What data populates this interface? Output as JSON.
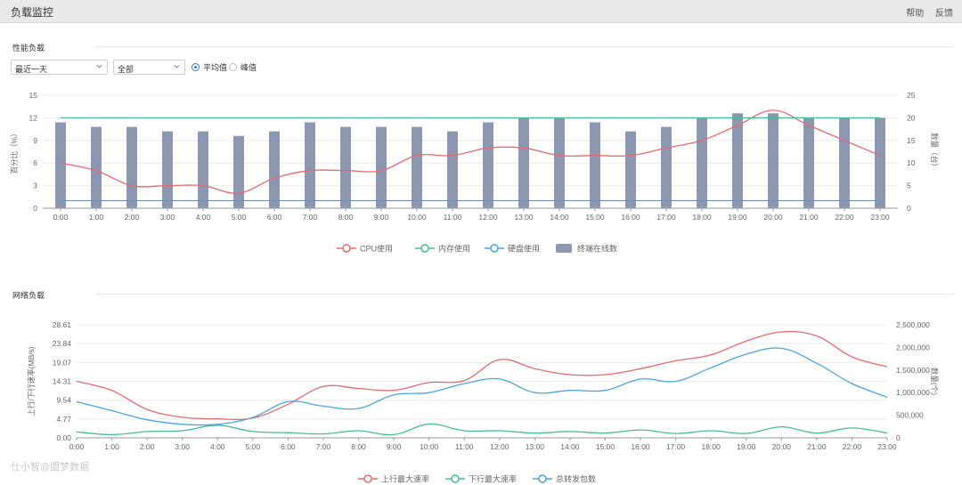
{
  "header": {
    "title": "负载监控",
    "help": "帮助",
    "feedback": "反馈"
  },
  "perf": {
    "section_title": "性能负载",
    "range_select": "最近一天",
    "scope_select": "全部",
    "radio_avg": "平均值",
    "radio_peak": "峰值",
    "radio_selected": "avg"
  },
  "network": {
    "section_title": "网络负载"
  },
  "watermark": "仕小智@盟梦数据",
  "colors": {
    "cpu": "#e86a6f",
    "mem": "#46bd95",
    "disk": "#4aa6e0",
    "bars": "#8c97b2",
    "up": "#e86a6f",
    "down": "#46bd95",
    "packets": "#4aa6e0",
    "accent": "#2a7ae2"
  },
  "chart_data": [
    {
      "type": "bar",
      "categories": [
        "0:00",
        "1:00",
        "2:00",
        "3:00",
        "4:00",
        "5:00",
        "6:00",
        "7:00",
        "8:00",
        "9:00",
        "10:00",
        "11:00",
        "12:00",
        "13:00",
        "14:00",
        "15:00",
        "16:00",
        "17:00",
        "18:00",
        "19:00",
        "20:00",
        "21:00",
        "22:00",
        "23:00"
      ],
      "ylabel": "百分比（%）",
      "ylabel_right": "数量（台）",
      "ylim": [
        0,
        15
      ],
      "yticks": [
        0,
        3,
        6,
        9,
        12,
        15
      ],
      "ylim_right": [
        0,
        25
      ],
      "yticks_right": [
        0,
        5,
        10,
        15,
        20,
        25
      ],
      "legend_position": "bottom",
      "grid": true,
      "series": [
        {
          "name": "CPU使用",
          "kind": "line",
          "axis": "left",
          "color_key": "cpu",
          "values": [
            6.0,
            5.0,
            3.0,
            3.0,
            3.0,
            2.0,
            4.0,
            5.0,
            5.0,
            5.0,
            7.0,
            7.0,
            8.0,
            8.0,
            7.0,
            7.0,
            7.0,
            8.0,
            9.0,
            11.0,
            13.0,
            11.0,
            9.0,
            7.0
          ]
        },
        {
          "name": "内存使用",
          "kind": "line",
          "axis": "left",
          "color_key": "mem",
          "values": [
            12,
            12,
            12,
            12,
            12,
            12,
            12,
            12,
            12,
            12,
            12,
            12,
            12,
            12,
            12,
            12,
            12,
            12,
            12,
            12,
            12,
            12,
            12,
            12
          ]
        },
        {
          "name": "硬盘使用",
          "kind": "line",
          "axis": "left",
          "color_key": "disk",
          "values": [
            1,
            1,
            1,
            1,
            1,
            1,
            1,
            1,
            1,
            1,
            1,
            1,
            1,
            1,
            1,
            1,
            1,
            1,
            1,
            1,
            1,
            1,
            1,
            1
          ]
        },
        {
          "name": "终端在线数",
          "kind": "bar",
          "axis": "right",
          "color_key": "bars",
          "values": [
            19,
            18,
            18,
            17,
            17,
            16,
            17,
            19,
            18,
            18,
            18,
            17,
            19,
            20,
            20,
            19,
            17,
            18,
            20,
            21,
            21,
            20,
            20,
            20
          ]
        }
      ]
    },
    {
      "type": "line",
      "categories": [
        "0:00",
        "1:00",
        "2:00",
        "3:00",
        "4:00",
        "5:00",
        "6:00",
        "7:00",
        "8:00",
        "9:00",
        "10:00",
        "11:00",
        "12:00",
        "13:00",
        "14:00",
        "15:00",
        "16:00",
        "17:00",
        "18:00",
        "19:00",
        "20:00",
        "21:00",
        "22:00",
        "23:00"
      ],
      "ylabel": "上行/下行速率(MB/s)",
      "ylabel_right": "数量(个)",
      "ylim": [
        0,
        28.61
      ],
      "yticks": [
        "0.00",
        "4.77",
        "9.54",
        "14.31",
        "19.07",
        "23.84",
        "28.61"
      ],
      "ylim_right": [
        0,
        2500000
      ],
      "yticks_right": [
        "0",
        "500,000",
        "1,000,000",
        "1,500,000",
        "2,000,000",
        "2,500,000"
      ],
      "legend_position": "bottom",
      "grid": true,
      "series": [
        {
          "name": "上行最大速率",
          "axis": "left",
          "color_key": "up",
          "values": [
            14.3,
            12.0,
            7.2,
            5.2,
            4.8,
            5.0,
            8.5,
            13.0,
            12.5,
            12.0,
            14.0,
            14.5,
            19.8,
            17.5,
            16.0,
            16.0,
            17.5,
            19.5,
            21.0,
            24.5,
            26.8,
            25.8,
            20.5,
            18.0
          ]
        },
        {
          "name": "下行最大速率",
          "axis": "left",
          "color_key": "down",
          "values": [
            1.5,
            0.8,
            1.6,
            1.8,
            3.2,
            1.6,
            1.3,
            1.0,
            1.8,
            0.8,
            3.5,
            1.8,
            1.8,
            1.2,
            1.6,
            1.2,
            2.0,
            1.1,
            1.8,
            1.1,
            2.8,
            1.2,
            2.5,
            1.2
          ]
        },
        {
          "name": "总转发包数",
          "axis": "right",
          "color_key": "packets",
          "values": [
            800000,
            600000,
            400000,
            300000,
            300000,
            450000,
            800000,
            700000,
            650000,
            950000,
            1000000,
            1200000,
            1300000,
            1000000,
            1050000,
            1050000,
            1300000,
            1250000,
            1550000,
            1850000,
            1980000,
            1650000,
            1200000,
            900000
          ]
        }
      ]
    }
  ]
}
